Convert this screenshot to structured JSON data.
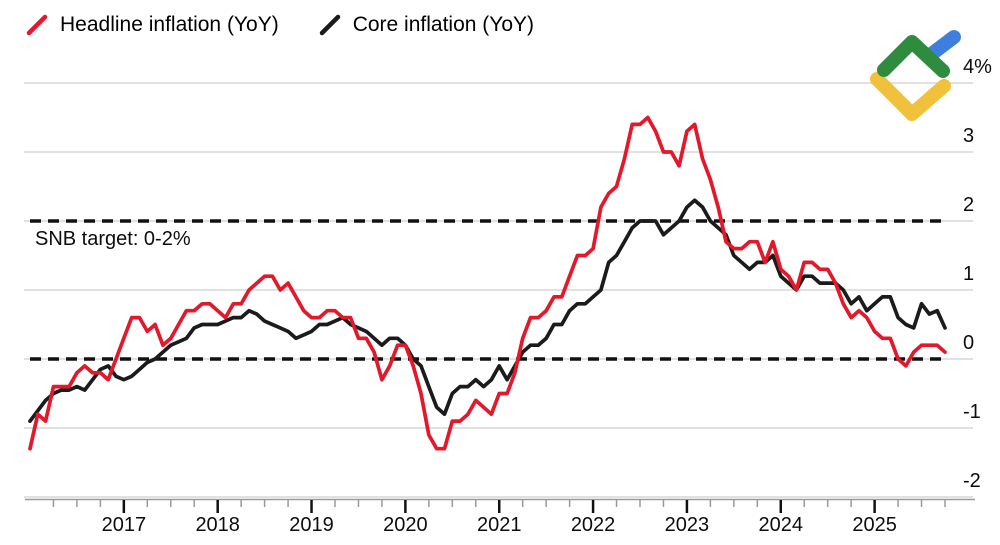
{
  "legend": {
    "headline_label": "Headline inflation (YoY)",
    "core_label": "Core inflation (YoY)"
  },
  "annotation": {
    "snb_target": "SNB target: 0-2%"
  },
  "colors": {
    "headline": "#E2182B",
    "core": "#1B1B1B",
    "grid": "#CFCFCF",
    "axis": "#9A9A9A",
    "target_dash": "#111111",
    "logo_green": "#2F8C3F",
    "logo_blue": "#3E7EDD",
    "logo_yellow": "#F1C13B"
  },
  "chart_data": {
    "type": "line",
    "title": "",
    "unit": "%",
    "frequency": "monthly",
    "x_start": "2016-01",
    "x_end": "2025-10",
    "ylim": [
      -2,
      4
    ],
    "grid": "horizontal",
    "legend_position": "top-left",
    "y_ticks": {
      "values": [
        4,
        3,
        2,
        1,
        0,
        -1,
        -2
      ],
      "labels": [
        "4%",
        "3",
        "2",
        "1",
        "0",
        "-1",
        "-2"
      ]
    },
    "x_tick_years": [
      "2017",
      "2018",
      "2019",
      "2020",
      "2021",
      "2022",
      "2023",
      "2024",
      "2025"
    ],
    "target_lines": [
      {
        "value": 2,
        "style": "dashed",
        "label": "SNB target: 0-2%"
      },
      {
        "value": 0,
        "style": "dashed",
        "label": ""
      }
    ],
    "series": [
      {
        "name": "Headline inflation (YoY)",
        "color": "#E2182B",
        "values": [
          -1.3,
          -0.8,
          -0.9,
          -0.4,
          -0.4,
          -0.4,
          -0.2,
          -0.1,
          -0.2,
          -0.2,
          -0.3,
          0.0,
          0.3,
          0.6,
          0.6,
          0.4,
          0.5,
          0.2,
          0.3,
          0.5,
          0.7,
          0.7,
          0.8,
          0.8,
          0.7,
          0.6,
          0.8,
          0.8,
          1.0,
          1.1,
          1.2,
          1.2,
          1.0,
          1.1,
          0.9,
          0.7,
          0.6,
          0.6,
          0.7,
          0.7,
          0.6,
          0.6,
          0.3,
          0.3,
          0.1,
          -0.3,
          -0.1,
          0.2,
          0.2,
          -0.1,
          -0.5,
          -1.1,
          -1.3,
          -1.3,
          -0.9,
          -0.9,
          -0.8,
          -0.6,
          -0.7,
          -0.8,
          -0.5,
          -0.5,
          -0.2,
          0.3,
          0.6,
          0.6,
          0.7,
          0.9,
          0.9,
          1.2,
          1.5,
          1.5,
          1.6,
          2.2,
          2.4,
          2.5,
          2.9,
          3.4,
          3.4,
          3.5,
          3.3,
          3.0,
          3.0,
          2.8,
          3.3,
          3.4,
          2.9,
          2.6,
          2.2,
          1.7,
          1.6,
          1.6,
          1.7,
          1.7,
          1.4,
          1.7,
          1.3,
          1.2,
          1.0,
          1.4,
          1.4,
          1.3,
          1.3,
          1.1,
          0.8,
          0.6,
          0.7,
          0.6,
          0.4,
          0.3,
          0.3,
          0.0,
          -0.1,
          0.1,
          0.2,
          0.2,
          0.2,
          0.1
        ]
      },
      {
        "name": "Core inflation (YoY)",
        "color": "#1B1B1B",
        "values": [
          -0.9,
          -0.75,
          -0.6,
          -0.5,
          -0.45,
          -0.45,
          -0.4,
          -0.45,
          -0.3,
          -0.15,
          -0.1,
          -0.25,
          -0.3,
          -0.25,
          -0.15,
          -0.05,
          0.0,
          0.1,
          0.2,
          0.25,
          0.3,
          0.45,
          0.5,
          0.5,
          0.5,
          0.55,
          0.6,
          0.6,
          0.7,
          0.65,
          0.55,
          0.5,
          0.45,
          0.4,
          0.3,
          0.35,
          0.4,
          0.5,
          0.5,
          0.55,
          0.6,
          0.5,
          0.45,
          0.4,
          0.3,
          0.2,
          0.3,
          0.3,
          0.2,
          0.0,
          -0.1,
          -0.4,
          -0.7,
          -0.8,
          -0.5,
          -0.4,
          -0.4,
          -0.3,
          -0.4,
          -0.3,
          -0.1,
          -0.3,
          -0.1,
          0.1,
          0.2,
          0.2,
          0.3,
          0.5,
          0.5,
          0.7,
          0.8,
          0.8,
          0.9,
          1.0,
          1.4,
          1.5,
          1.7,
          1.9,
          2.0,
          2.0,
          2.0,
          1.8,
          1.9,
          2.0,
          2.2,
          2.3,
          2.2,
          2.0,
          1.9,
          1.8,
          1.5,
          1.4,
          1.3,
          1.4,
          1.4,
          1.5,
          1.2,
          1.1,
          1.0,
          1.2,
          1.2,
          1.1,
          1.1,
          1.1,
          1.0,
          0.8,
          0.9,
          0.7,
          0.8,
          0.9,
          0.9,
          0.6,
          0.5,
          0.45,
          0.8,
          0.65,
          0.7,
          0.45
        ]
      }
    ]
  }
}
